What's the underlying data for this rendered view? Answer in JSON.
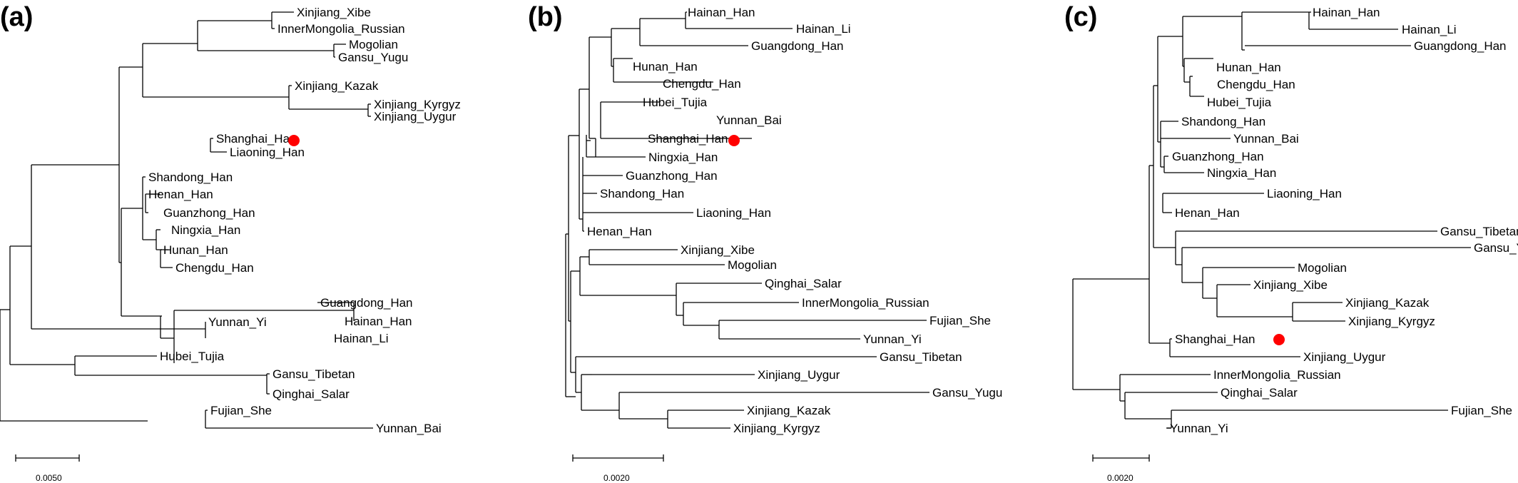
{
  "panels": [
    {
      "label": "(a)",
      "scale_label": "0.0050",
      "marker_color": "#ff0000",
      "leaves": [
        "Xinjiang_Xibe",
        "InnerMongolia_Russian",
        "Mogolian",
        "Gansu_Yugu",
        "Xinjiang_Kazak",
        "Xinjiang_Kyrgyz",
        "Xinjiang_Uygur",
        "Shanghai_Han",
        "Liaoning_Han",
        "Shandong_Han",
        "Henan_Han",
        "Guanzhong_Han",
        "Ningxia_Han",
        "Hunan_Han",
        "Chengdu_Han",
        "Guangdong_Han",
        "Hainan_Han",
        "Yunnan_Yi",
        "Hainan_Li",
        "Hubei_Tujia",
        "Gansu_Tibetan",
        "Qinghai_Salar",
        "Fujian_She",
        "Yunnan_Bai"
      ],
      "highlighted_leaf": "Shanghai_Han"
    },
    {
      "label": "(b)",
      "scale_label": "0.0020",
      "marker_color": "#ff0000",
      "leaves": [
        "Hainan_Han",
        "Hainan_Li",
        "Guangdong_Han",
        "Hunan_Han",
        "Chengdu_Han",
        "Hubei_Tujia",
        "Yunnan_Bai",
        "Shanghai_Han",
        "Ningxia_Han",
        "Guanzhong_Han",
        "Shandong_Han",
        "Liaoning_Han",
        "Henan_Han",
        "Xinjiang_Xibe",
        "Mogolian",
        "Qinghai_Salar",
        "InnerMongolia_Russian",
        "Fujian_She",
        "Yunnan_Yi",
        "Gansu_Tibetan",
        "Xinjiang_Uygur",
        "Gansu_Yugu",
        "Xinjiang_Kazak",
        "Xinjiang_Kyrgyz"
      ],
      "highlighted_leaf": "Shanghai_Han"
    },
    {
      "label": "(c)",
      "scale_label": "0.0020",
      "marker_color": "#ff0000",
      "leaves": [
        "Hainan_Han",
        "Hainan_Li",
        "Guangdong_Han",
        "Hunan_Han",
        "Chengdu_Han",
        "Hubei_Tujia",
        "Shandong_Han",
        "Yunnan_Bai",
        "Guanzhong_Han",
        "Ningxia_Han",
        "Liaoning_Han",
        "Henan_Han",
        "Gansu_Tibetan",
        "Gansu_Yugu",
        "Mogolian",
        "Xinjiang_Xibe",
        "Xinjiang_Kazak",
        "Xinjiang_Kyrgyz",
        "Shanghai_Han",
        "Xinjiang_Uygur",
        "InnerMongolia_Russian",
        "Qinghai_Salar",
        "Fujian_She",
        "Yunnan_Yi"
      ],
      "highlighted_leaf": "Shanghai_Han"
    }
  ]
}
